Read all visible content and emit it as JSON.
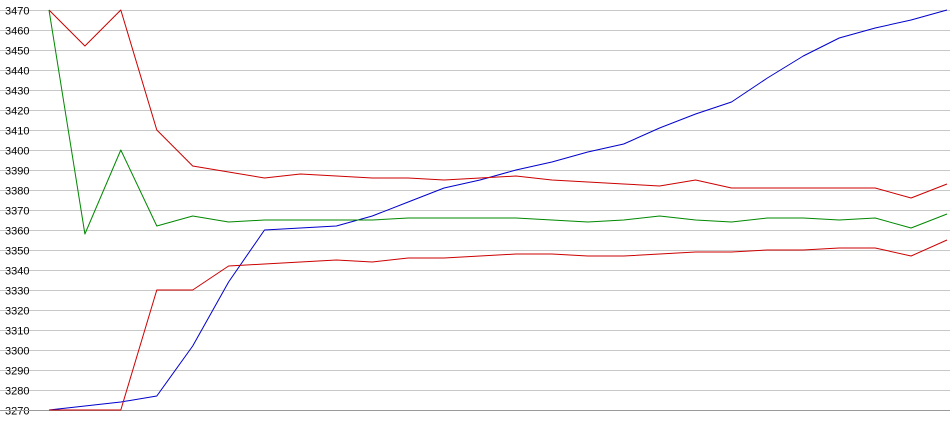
{
  "chart_data": {
    "type": "line",
    "title": "",
    "xlabel": "",
    "ylabel": "",
    "ylim": [
      3270,
      3470
    ],
    "yticks": [
      3270,
      3280,
      3290,
      3300,
      3310,
      3320,
      3330,
      3340,
      3350,
      3360,
      3370,
      3380,
      3390,
      3400,
      3410,
      3420,
      3430,
      3440,
      3450,
      3460,
      3470
    ],
    "ytick_labels": [
      "3270",
      "3280",
      "3290",
      "3300",
      "3310",
      "3320",
      "3330",
      "3340",
      "3350",
      "3360",
      "3370",
      "3380",
      "3390",
      "3400",
      "3410",
      "3420",
      "3430",
      "3440",
      "3450",
      "3460",
      "3470"
    ],
    "grid": true,
    "x": [
      0,
      6,
      12,
      18,
      24,
      30,
      36,
      42,
      48,
      54,
      60,
      66,
      72,
      78,
      84,
      90,
      96,
      102,
      108,
      114,
      120,
      126,
      132,
      138,
      144,
      150
    ],
    "series": [
      {
        "color": "#0000cc",
        "values": [
          3270,
          3272,
          3274,
          3277,
          3302,
          3334,
          3360,
          3361,
          3362,
          3367,
          3374,
          3381,
          3385,
          3390,
          3394,
          3399,
          3403,
          3411,
          3418,
          3424,
          3436,
          3447,
          3456,
          3461,
          3465,
          3470
        ]
      },
      {
        "color": "#cc0000",
        "values": [
          3470,
          3452,
          3470,
          3410,
          3392,
          3389,
          3386,
          3388,
          3387,
          3386,
          3386,
          3385,
          3386,
          3387,
          3385,
          3384,
          3383,
          3382,
          3385,
          3381,
          3381,
          3381,
          3381,
          3381,
          3376,
          3383
        ]
      },
      {
        "color": "#008800",
        "values": [
          3470,
          3358,
          3400,
          3362,
          3367,
          3364,
          3365,
          3365,
          3365,
          3365,
          3366,
          3366,
          3366,
          3366,
          3365,
          3364,
          3365,
          3367,
          3365,
          3364,
          3366,
          3366,
          3365,
          3366,
          3361,
          3368
        ]
      },
      {
        "color": "#cc0000",
        "values": [
          3270,
          3270,
          3270,
          3330,
          3330,
          3342,
          3343,
          3344,
          3345,
          3344,
          3346,
          3346,
          3347,
          3348,
          3348,
          3347,
          3347,
          3348,
          3349,
          3349,
          3350,
          3350,
          3351,
          3351,
          3347,
          3355
        ]
      }
    ]
  }
}
